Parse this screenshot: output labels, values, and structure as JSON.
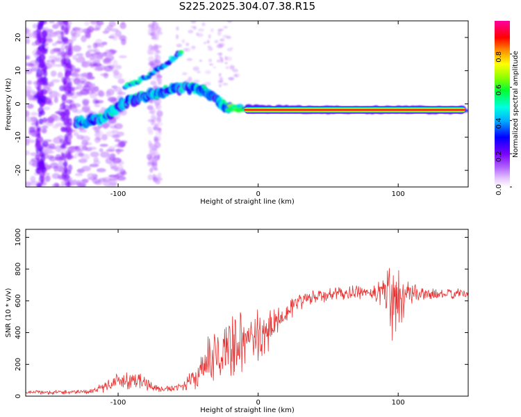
{
  "title": "S225.2025.304.07.38.R15",
  "chart_data": [
    {
      "type": "heatmap",
      "title": "S225.2025.304.07.38.R15",
      "xlabel": "Height of straight line (km)",
      "ylabel": "Frequency (Hz)",
      "xlim": [
        -166,
        150
      ],
      "ylim": [
        -25,
        25
      ],
      "xticks": [
        -100,
        0,
        100
      ],
      "yticks": [
        -20,
        -10,
        0,
        10,
        20
      ],
      "colorbar": {
        "label": "Normalized spectral amplitude",
        "range": [
          0,
          1
        ],
        "ticks": [
          "0.0",
          "0.2",
          "0.4",
          "0.6",
          "0.8"
        ]
      },
      "ridge": [
        {
          "x": -125,
          "f": -5.5
        },
        {
          "x": -110,
          "f": -4
        },
        {
          "x": -95,
          "f": 0.5
        },
        {
          "x": -80,
          "f": 2.5
        },
        {
          "x": -65,
          "f": 4
        },
        {
          "x": -50,
          "f": 5
        },
        {
          "x": -40,
          "f": 4.5
        },
        {
          "x": -30,
          "f": 1.5
        },
        {
          "x": -22,
          "f": -1.2
        },
        {
          "x": 0,
          "f": -1.5
        },
        {
          "x": 50,
          "f": -1.8
        },
        {
          "x": 100,
          "f": -1.8
        },
        {
          "x": 148,
          "f": -1.8
        }
      ],
      "upper_branch": [
        {
          "x": -95,
          "f": 5
        },
        {
          "x": -80,
          "f": 8
        },
        {
          "x": -68,
          "f": 11.5
        },
        {
          "x": -55,
          "f": 15.5
        }
      ],
      "strong_band": {
        "x_start": -10,
        "x_end": 148,
        "f": -1.8
      }
    },
    {
      "type": "line",
      "xlabel": "Height of straight line (km)",
      "ylabel": "SNR (10 * v/v)",
      "xlim": [
        -166,
        150
      ],
      "ylim": [
        0,
        1050
      ],
      "xticks": [
        -100,
        0,
        100
      ],
      "yticks": [
        0,
        200,
        400,
        600,
        800,
        1000
      ],
      "series": [
        {
          "name": "SNR",
          "color": "#e83030",
          "envelope": [
            {
              "x": -166,
              "mean": 25,
              "amp": 12
            },
            {
              "x": -140,
              "mean": 25,
              "amp": 15
            },
            {
              "x": -120,
              "mean": 30,
              "amp": 15
            },
            {
              "x": -110,
              "mean": 60,
              "amp": 35
            },
            {
              "x": -100,
              "mean": 95,
              "amp": 55
            },
            {
              "x": -90,
              "mean": 110,
              "amp": 65
            },
            {
              "x": -80,
              "mean": 80,
              "amp": 45
            },
            {
              "x": -70,
              "mean": 40,
              "amp": 20
            },
            {
              "x": -55,
              "mean": 60,
              "amp": 30
            },
            {
              "x": -45,
              "mean": 110,
              "amp": 60
            },
            {
              "x": -35,
              "mean": 220,
              "amp": 150
            },
            {
              "x": -25,
              "mean": 290,
              "amp": 210
            },
            {
              "x": -15,
              "mean": 330,
              "amp": 200
            },
            {
              "x": -5,
              "mean": 360,
              "amp": 160
            },
            {
              "x": 5,
              "mean": 390,
              "amp": 170
            },
            {
              "x": 15,
              "mean": 500,
              "amp": 90
            },
            {
              "x": 30,
              "mean": 600,
              "amp": 55
            },
            {
              "x": 50,
              "mean": 640,
              "amp": 45
            },
            {
              "x": 80,
              "mean": 655,
              "amp": 40
            },
            {
              "x": 90,
              "mean": 660,
              "amp": 120
            },
            {
              "x": 95,
              "mean": 640,
              "amp": 280
            },
            {
              "x": 100,
              "mean": 640,
              "amp": 380
            },
            {
              "x": 105,
              "mean": 650,
              "amp": 80
            },
            {
              "x": 120,
              "mean": 640,
              "amp": 35
            },
            {
              "x": 150,
              "mean": 645,
              "amp": 30
            }
          ]
        }
      ]
    }
  ]
}
